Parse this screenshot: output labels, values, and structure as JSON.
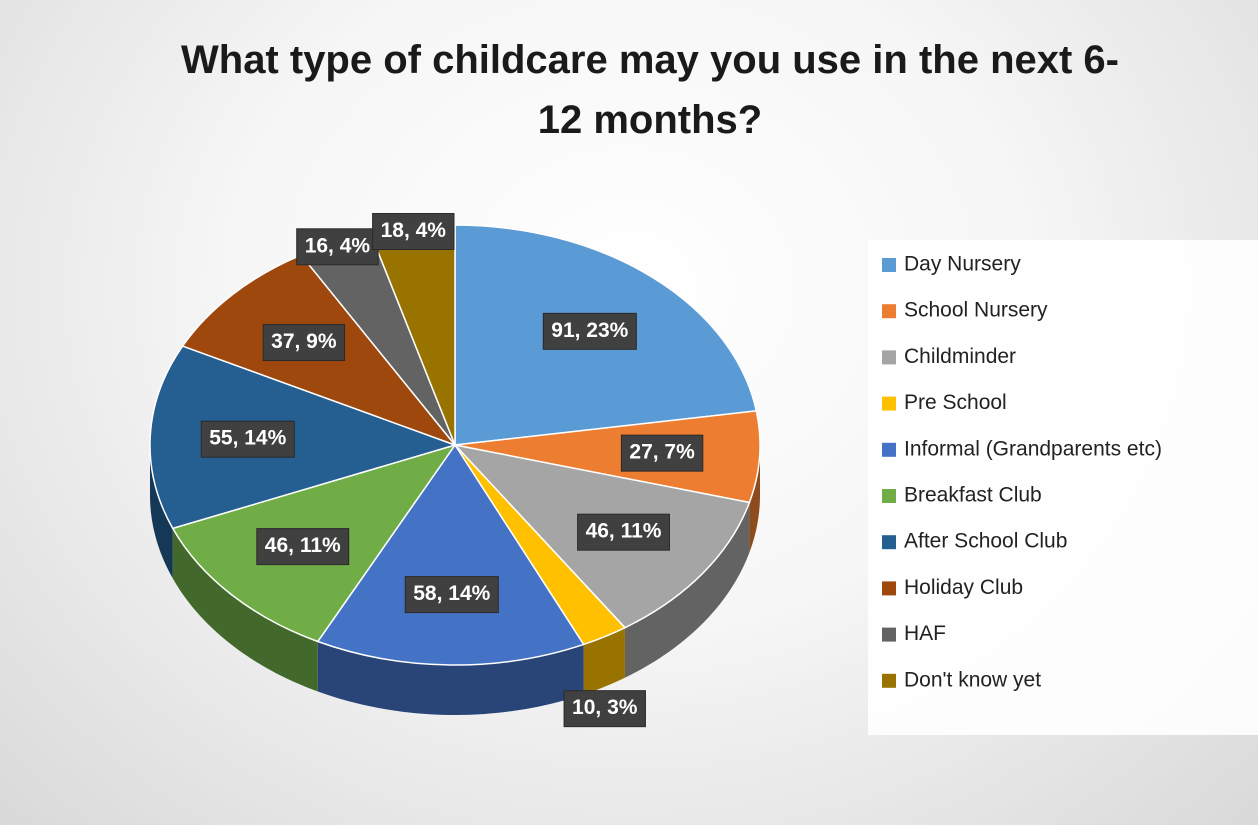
{
  "chart_data": {
    "type": "pie",
    "title": "What type of childcare may you use in the next 6-12 months?",
    "categories": [
      "Day Nursery",
      "School Nursery",
      "Childminder",
      "Pre School",
      "Informal (Grandparents etc)",
      "Breakfast Club",
      "After School Club",
      "Holiday Club",
      "HAF",
      "Don't know yet"
    ],
    "values": [
      91,
      27,
      46,
      10,
      58,
      46,
      55,
      37,
      16,
      18
    ],
    "value_labels": [
      "91, 23%",
      "27, 7%",
      "46, 11%",
      "10, 3%",
      "58, 14%",
      "46, 11%",
      "55, 14%",
      "37, 9%",
      "16, 4%",
      "18, 4%"
    ],
    "colors": [
      "#5b9bd5",
      "#ed7d31",
      "#a5a5a5",
      "#ffc000",
      "#4472c4",
      "#70ad47",
      "#255e91",
      "#9e480e",
      "#636363",
      "#997300"
    ],
    "legend": "right"
  }
}
